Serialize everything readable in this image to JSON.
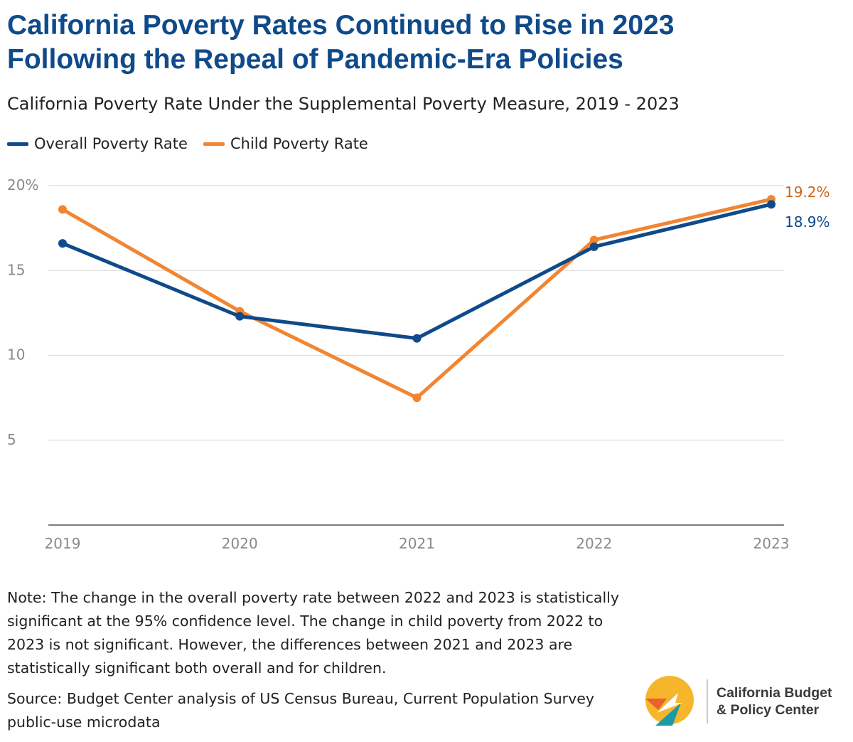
{
  "header": {
    "title_line1": "California Poverty Rates Continued to Rise in 2023",
    "title_line2": "Following the Repeal of Pandemic-Era Policies",
    "subtitle": "California Poverty Rate Under the Supplemental Poverty Measure, 2019 - 2023"
  },
  "colors": {
    "overall": "#0f4a8a",
    "child": "#f28531",
    "title": "#0f4a8a",
    "grid": "#dddddd"
  },
  "chart_data": {
    "type": "line",
    "x": [
      "2019",
      "2020",
      "2021",
      "2022",
      "2023"
    ],
    "series": [
      {
        "name": "Overall Poverty Rate",
        "values": [
          16.6,
          12.3,
          11.0,
          16.4,
          18.9
        ],
        "color": "#0f4a8a"
      },
      {
        "name": "Child Poverty Rate",
        "values": [
          18.6,
          12.6,
          7.5,
          16.8,
          19.2
        ],
        "color": "#f28531"
      }
    ],
    "y_ticks": [
      {
        "value": 20,
        "label": "20%"
      },
      {
        "value": 15,
        "label": "15"
      },
      {
        "value": 10,
        "label": "10"
      },
      {
        "value": 5,
        "label": "5"
      }
    ],
    "end_labels": {
      "child": "19.2%",
      "overall": "18.9%"
    },
    "ylim": [
      0,
      20
    ],
    "grid": true,
    "legend_position": "top-left"
  },
  "footer": {
    "note": "Note: The change in the overall poverty rate between 2022 and 2023 is statistically significant at the 95% confidence level. The change in child poverty from 2022 to 2023 is not significant. However, the differences between 2021 and 2023 are statistically significant both overall and for children.",
    "source": "Source: Budget Center analysis of US Census Bureau, Current Population Survey public-use microdata"
  },
  "logo": {
    "line1": "California Budget",
    "line2": "& Policy Center",
    "icon": "compass-arrow-logo-icon"
  }
}
